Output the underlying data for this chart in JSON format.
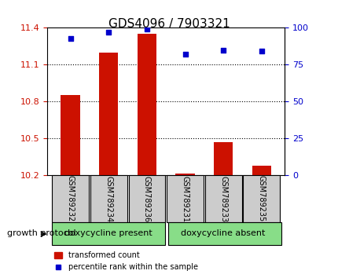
{
  "title": "GDS4096 / 7903321",
  "samples": [
    "GSM789232",
    "GSM789234",
    "GSM789236",
    "GSM789231",
    "GSM789233",
    "GSM789235"
  ],
  "bar_values": [
    10.85,
    11.2,
    11.35,
    10.21,
    10.47,
    10.28
  ],
  "percentile_values": [
    93,
    97,
    99,
    82,
    85,
    84
  ],
  "ylim_left": [
    10.2,
    11.4
  ],
  "ylim_right": [
    0,
    100
  ],
  "yticks_left": [
    10.2,
    10.5,
    10.8,
    11.1,
    11.4
  ],
  "yticks_right": [
    0,
    25,
    50,
    75,
    100
  ],
  "bar_color": "#cc1100",
  "scatter_color": "#0000cc",
  "bar_width": 0.5,
  "group1_label": "doxycycline present",
  "group2_label": "doxycycline absent",
  "group1_indices": [
    0,
    1,
    2
  ],
  "group2_indices": [
    3,
    4,
    5
  ],
  "protocol_label": "growth protocol",
  "legend_bar_label": "transformed count",
  "legend_scatter_label": "percentile rank within the sample",
  "bg_color": "#ffffff",
  "plot_bg_color": "#ffffff",
  "tick_color_left": "#cc1100",
  "tick_color_right": "#0000cc",
  "group_bg_color": "#88dd88",
  "xticklabel_bg_color": "#cccccc",
  "base_value": 10.2
}
